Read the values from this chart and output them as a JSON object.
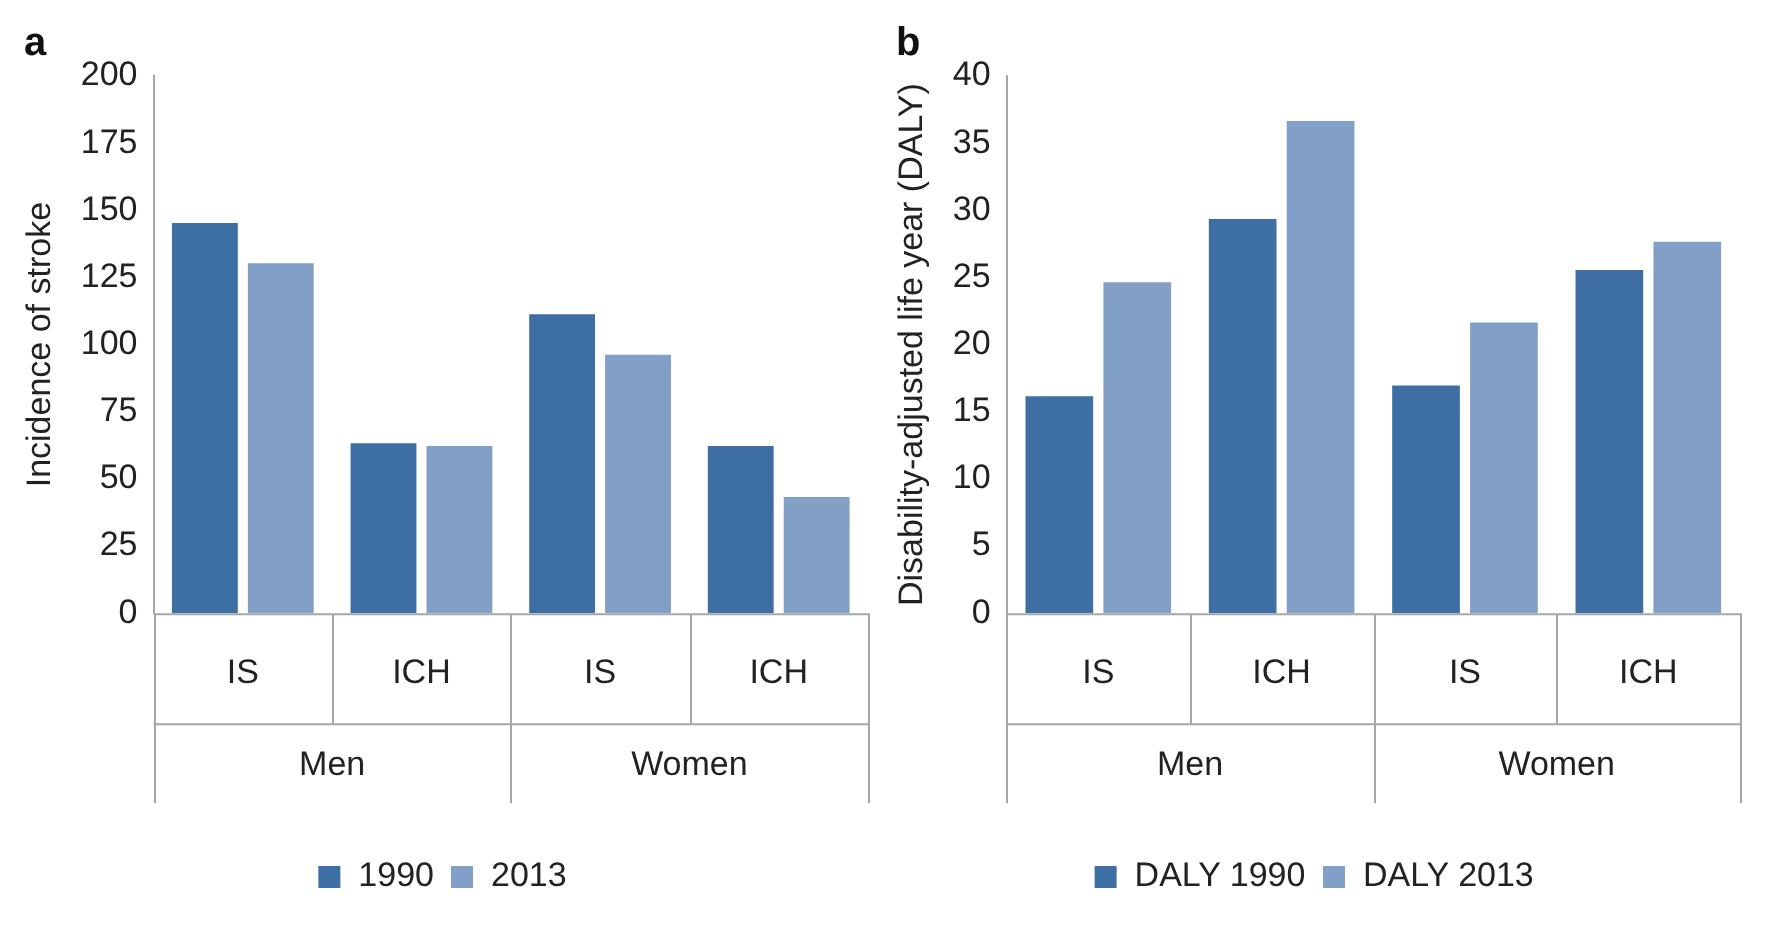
{
  "chart_data": [
    {
      "type": "bar",
      "title": "a",
      "ylabel": "Incidence of stroke",
      "categories": [
        "IS",
        "ICH",
        "IS",
        "ICH"
      ],
      "annotations": [
        "Men",
        "Women"
      ],
      "series": [
        {
          "name": "1990",
          "color": "#3d6fa5",
          "values": [
            146,
            64,
            112,
            63
          ]
        },
        {
          "name": "2013",
          "color": "#829fc7",
          "values": [
            131,
            63,
            97,
            44
          ]
        }
      ],
      "ylim": [
        0,
        200
      ],
      "yticks": [
        0,
        25,
        50,
        75,
        100,
        125,
        150,
        175,
        200
      ],
      "grid": false,
      "legend": "bottom"
    },
    {
      "type": "bar",
      "title": "b",
      "ylabel": "Disability-adjusted life year (DALY)",
      "categories": [
        "IS",
        "ICH",
        "IS",
        "ICH"
      ],
      "annotations": [
        "Men",
        "Women"
      ],
      "series": [
        {
          "name": "DALY 1990",
          "color": "#3d6fa5",
          "values": [
            16.3,
            29.5,
            17.1,
            25.7
          ]
        },
        {
          "name": "DALY 2013",
          "color": "#829fc7",
          "values": [
            24.8,
            36.8,
            21.8,
            27.8
          ]
        }
      ],
      "ylim": [
        0,
        40
      ],
      "yticks": [
        0,
        5,
        10,
        15,
        20,
        25,
        30,
        35,
        40
      ],
      "grid": false,
      "legend": "bottom"
    }
  ]
}
